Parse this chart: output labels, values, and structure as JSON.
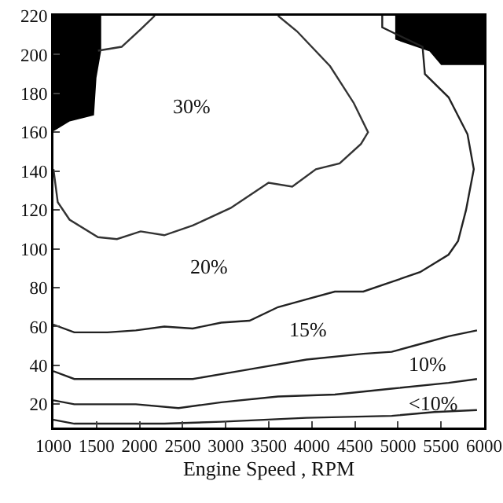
{
  "chart_data": {
    "type": "line",
    "xlabel": "Engine Speed , RPM",
    "xlim": [
      1000,
      6000
    ],
    "ylim": [
      8,
      220
    ],
    "xticks": [
      1000,
      1500,
      2000,
      2500,
      3000,
      3500,
      4000,
      4500,
      5000,
      5500,
      6000
    ],
    "yticks": [
      20,
      40,
      60,
      80,
      100,
      120,
      140,
      160,
      180,
      200,
      220
    ],
    "grid": false,
    "marker": "none",
    "line_style": "solid",
    "series": [
      {
        "type": "area",
        "color": "#000000",
        "x": [
          1000,
          1000,
          1187,
          1462,
          1490,
          1545,
          1545
        ],
        "values": [
          220,
          161,
          166,
          169,
          188,
          202,
          220
        ]
      },
      {
        "type": "area",
        "color": "#000000",
        "x": [
          4977,
          4977,
          5372,
          5505,
          6000,
          6000
        ],
        "values": [
          220,
          208,
          202,
          195,
          195,
          220
        ]
      },
      {
        "color": "#333333",
        "x": [
          1000,
          1050,
          1187,
          1517,
          1737,
          2012,
          2287,
          2617,
          3057,
          3497,
          3772,
          4047,
          4322,
          4570,
          4652,
          4487,
          4212,
          3827,
          3607
        ],
        "values": [
          141,
          124,
          115,
          106,
          105,
          109,
          107,
          112,
          121,
          134,
          132,
          141,
          144,
          154,
          160,
          175,
          194,
          212,
          220
        ]
      },
      {
        "color": "#333333",
        "x": [
          1517,
          1792,
          2012,
          2177
        ],
        "values": [
          202,
          204,
          213,
          220
        ]
      },
      {
        "color": "#222222",
        "x": [
          1000,
          1242,
          1627,
          1957,
          2287,
          2617,
          2947,
          3277,
          3607,
          3937,
          4267,
          4597,
          4927,
          5257,
          5587,
          5697,
          5790,
          5880,
          5807,
          5587,
          5312,
          5285,
          4817,
          4817
        ],
        "values": [
          61,
          57,
          57,
          58,
          60,
          59,
          62,
          63,
          70,
          74,
          78,
          78,
          83,
          88,
          97,
          104,
          120,
          141,
          159,
          178,
          190,
          204,
          214,
          220
        ]
      },
      {
        "color": "#222222",
        "x": [
          1000,
          1242,
          1957,
          2617,
          3277,
          3937,
          4597,
          4927,
          5257,
          5587,
          5917
        ],
        "values": [
          37,
          33,
          33,
          33,
          38,
          43,
          46,
          47,
          51,
          55,
          58
        ]
      },
      {
        "color": "#222222",
        "x": [
          1000,
          1242,
          1957,
          2452,
          2947,
          3607,
          4267,
          4927,
          5587,
          5917
        ],
        "values": [
          22,
          20,
          20,
          18,
          21,
          24,
          25,
          28,
          31,
          33
        ]
      },
      {
        "color": "#222222",
        "x": [
          1000,
          1242,
          2287,
          2947,
          3937,
          4927,
          5422,
          5917
        ],
        "values": [
          12,
          10,
          10,
          11,
          13,
          14,
          16,
          17
        ]
      }
    ],
    "annotations": [
      "30%",
      "20%",
      "15%",
      "10%",
      "<10%"
    ]
  }
}
